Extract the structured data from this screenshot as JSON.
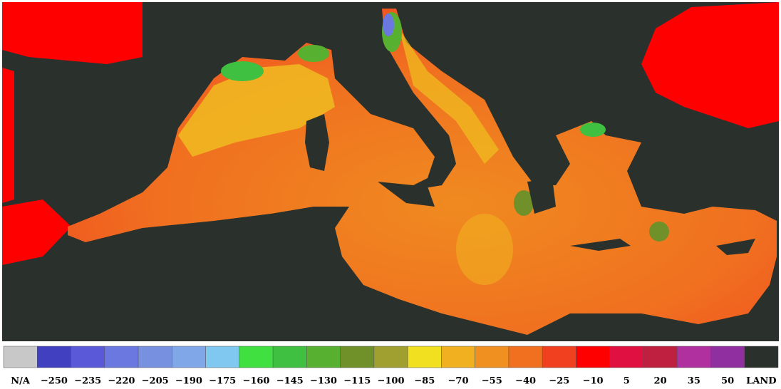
{
  "legend": {
    "items": [
      {
        "label": "N/A",
        "color": "#c8c8c8"
      },
      {
        "label": "−250",
        "color": "#4040c0"
      },
      {
        "label": "−235",
        "color": "#5a5ad8"
      },
      {
        "label": "−220",
        "color": "#6a78e0"
      },
      {
        "label": "−205",
        "color": "#7890e0"
      },
      {
        "label": "−190",
        "color": "#80a8e8"
      },
      {
        "label": "−175",
        "color": "#80c8f0"
      },
      {
        "label": "−160",
        "color": "#40e040"
      },
      {
        "label": "−145",
        "color": "#40c040"
      },
      {
        "label": "−130",
        "color": "#58b030"
      },
      {
        "label": "−115",
        "color": "#70902a"
      },
      {
        "label": "−100",
        "color": "#a0a030"
      },
      {
        "label": "−85",
        "color": "#f0e020"
      },
      {
        "label": "−70",
        "color": "#f0b020"
      },
      {
        "label": "−55",
        "color": "#f09020"
      },
      {
        "label": "−40",
        "color": "#f07020"
      },
      {
        "label": "−25",
        "color": "#f04020"
      },
      {
        "label": "−10",
        "color": "#ff0000"
      },
      {
        "label": "5",
        "color": "#e01040"
      },
      {
        "label": "20",
        "color": "#c02040"
      },
      {
        "label": "35",
        "color": "#b030a0"
      },
      {
        "label": "50",
        "color": "#9030a0"
      },
      {
        "label": "LAND",
        "color": "#2a302c"
      }
    ]
  }
}
